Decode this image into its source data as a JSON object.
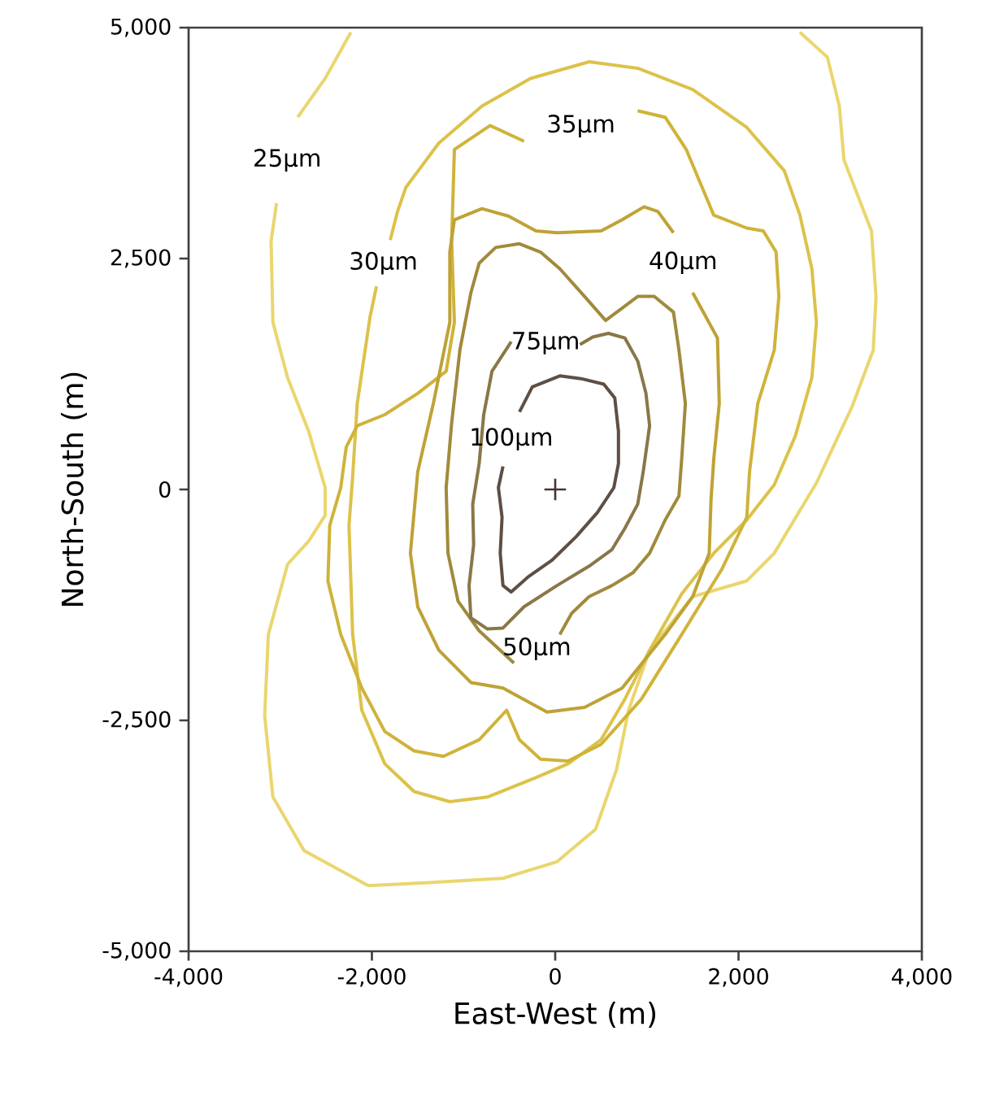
{
  "chart_data": {
    "type": "line",
    "xlabel": "East-West (m)",
    "ylabel": "North-South (m)",
    "xlim": [
      -4000,
      4000
    ],
    "ylim": [
      -5000,
      5000
    ],
    "xticks": [
      {
        "value": -4000,
        "label": "-4,000"
      },
      {
        "value": -2000,
        "label": "-2,000"
      },
      {
        "value": 0,
        "label": "0"
      },
      {
        "value": 2000,
        "label": "2,000"
      },
      {
        "value": 4000,
        "label": "4,000"
      }
    ],
    "yticks": [
      {
        "value": -5000,
        "label": "-5,000"
      },
      {
        "value": -2500,
        "label": "-2,500"
      },
      {
        "value": 0,
        "label": "0"
      },
      {
        "value": 2500,
        "label": "2,500"
      },
      {
        "value": 5000,
        "label": "5,000"
      }
    ],
    "series": [
      {
        "name": "25μm",
        "color": "#ead66e",
        "x": [
          -2230,
          -2510,
          -2810,
          null,
          -3040,
          -3100,
          -3080,
          -2920,
          -2690,
          -2510,
          -2510,
          -2690,
          -2920,
          -3130,
          -3170,
          -3080,
          -2740,
          -2040,
          -1450,
          -570,
          20,
          440,
          670,
          800,
          1030,
          1500,
          2090,
          2390,
          2850,
          3240,
          3470,
          3500,
          3450,
          3150,
          3100,
          2970,
          2670
        ],
        "values": [
          4950,
          4450,
          4030,
          null,
          3100,
          2690,
          1810,
          1210,
          630,
          20,
          -280,
          -560,
          -810,
          -1570,
          -2450,
          -3330,
          -3910,
          -4290,
          -4260,
          -4210,
          -4030,
          -3680,
          -3030,
          -2390,
          -1740,
          -1160,
          -990,
          -690,
          70,
          900,
          1510,
          2090,
          2800,
          3570,
          4150,
          4680,
          4950
        ]
      },
      {
        "name": "30μm",
        "color": "#dcc24a",
        "x": [
          -1800,
          -1720,
          -1630,
          -1270,
          -800,
          -270,
          370,
          900,
          1500,
          2090,
          2500,
          2670,
          2800,
          2850,
          2800,
          2620,
          2390,
          2090,
          1730,
          1380,
          1030,
          760,
          500,
          140,
          -210,
          -740,
          -1150,
          -1540,
          -1860,
          -2110,
          -2210,
          -2250,
          -2210,
          -2160,
          -2020,
          -1950
        ],
        "values": [
          2700,
          3010,
          3270,
          3750,
          4150,
          4450,
          4630,
          4560,
          4330,
          3920,
          3450,
          2970,
          2390,
          1810,
          1210,
          580,
          50,
          -330,
          -690,
          -1130,
          -1740,
          -2270,
          -2710,
          -2970,
          -3120,
          -3330,
          -3380,
          -3270,
          -2970,
          -2390,
          -1570,
          -390,
          140,
          930,
          1870,
          2200
        ]
      },
      {
        "name": "35μm",
        "color": "#cfb33a",
        "x": [
          -340,
          -710,
          -1100,
          -1130,
          -1100,
          -1190,
          -1500,
          -1860,
          -2160,
          -2280,
          -2340,
          -2460,
          -2480,
          -2340,
          -2110,
          -1860,
          -1540,
          -1220,
          -830,
          -530,
          -390,
          -160,
          140,
          500,
          940,
          1380,
          1820,
          2090,
          2120,
          2210,
          2390,
          2440,
          2410,
          2270,
          2090,
          1730,
          1430,
          1200,
          900
        ],
        "values": [
          3770,
          3940,
          3680,
          2690,
          1810,
          1280,
          1040,
          810,
          690,
          460,
          20,
          -390,
          -990,
          -1570,
          -2150,
          -2620,
          -2830,
          -2890,
          -2710,
          -2390,
          -2710,
          -2920,
          -2940,
          -2760,
          -2270,
          -1570,
          -860,
          -300,
          190,
          930,
          1510,
          2090,
          2570,
          2800,
          2830,
          2970,
          3680,
          4030,
          4100
        ]
      },
      {
        "name": "40μm",
        "color": "#bfa236",
        "x": [
          1500,
          1770,
          1790,
          1730,
          1700,
          1680,
          1500,
          1200,
          730,
          320,
          -90,
          -570,
          -920,
          -1270,
          -1500,
          -1580,
          -1500,
          -1330,
          -1150,
          -1150,
          -1100,
          -800,
          -510,
          -210,
          20,
          500,
          730,
          970,
          1120,
          1290
        ],
        "values": [
          2130,
          1640,
          930,
          330,
          -110,
          -690,
          -1160,
          -1570,
          -2150,
          -2360,
          -2410,
          -2150,
          -2090,
          -1740,
          -1270,
          -690,
          190,
          930,
          1810,
          2570,
          2920,
          3040,
          2960,
          2800,
          2780,
          2800,
          2920,
          3060,
          3010,
          2780
        ]
      },
      {
        "name": "50μm",
        "color": "#a08a3c",
        "x": [
          50,
          180,
          370,
          620,
          850,
          1030,
          1200,
          1350,
          1380,
          1420,
          1350,
          1290,
          1080,
          900,
          550,
          320,
          50,
          -160,
          -390,
          -650,
          -830,
          -920,
          -1040,
          -1130,
          -1190,
          -1170,
          -1060,
          -830,
          -450
        ],
        "values": [
          -1570,
          -1340,
          -1160,
          -1040,
          -900,
          -690,
          -330,
          -70,
          330,
          930,
          1510,
          1920,
          2090,
          2090,
          1830,
          2090,
          2390,
          2570,
          2660,
          2620,
          2450,
          2130,
          1510,
          720,
          20,
          -690,
          -1210,
          -1530,
          -1880
        ]
      },
      {
        "name": "75μm",
        "color": "#8a7648",
        "x": [
          270,
          410,
          580,
          760,
          900,
          990,
          1030,
          960,
          900,
          760,
          620,
          370,
          20,
          -340,
          -570,
          -740,
          -920,
          -940,
          -890,
          -900,
          -830,
          -780,
          -690,
          -480
        ],
        "values": [
          1570,
          1650,
          1690,
          1640,
          1390,
          1040,
          690,
          190,
          -160,
          -420,
          -650,
          -830,
          -1040,
          -1270,
          -1500,
          -1510,
          -1390,
          -1040,
          -600,
          -160,
          280,
          810,
          1280,
          1600
        ]
      },
      {
        "name": "100μm",
        "color": "#5e4f45",
        "x": [
          -390,
          -250,
          50,
          280,
          530,
          650,
          690,
          690,
          640,
          460,
          230,
          -40,
          -300,
          -480,
          -570,
          -600,
          -580,
          -620,
          -570
        ],
        "values": [
          840,
          1110,
          1230,
          1200,
          1140,
          990,
          630,
          280,
          20,
          -250,
          -510,
          -770,
          -950,
          -1110,
          -1040,
          -690,
          -300,
          20,
          250
        ]
      },
      {
        "type": "scatter",
        "marker": "cross",
        "color": "#4a3535",
        "x": [
          0
        ],
        "values": [
          0
        ]
      }
    ]
  }
}
